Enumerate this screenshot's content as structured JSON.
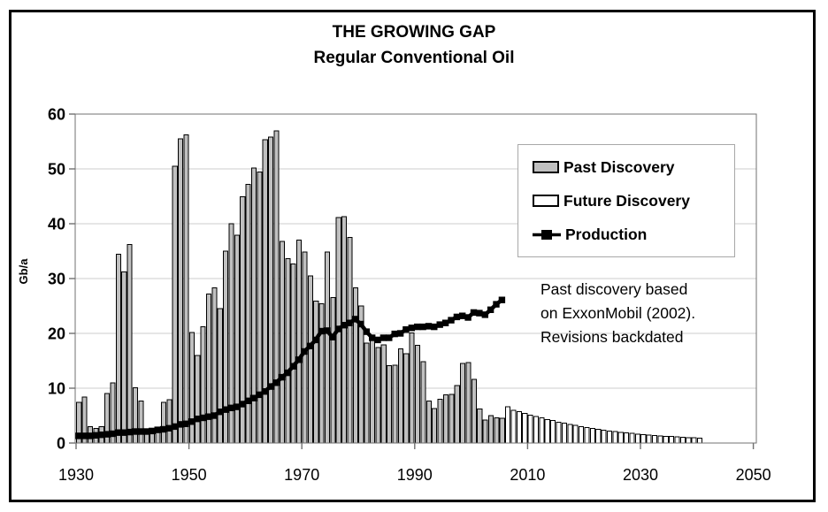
{
  "title": {
    "line1": "THE GROWING GAP",
    "line2": "Regular Conventional Oil"
  },
  "y_axis": {
    "label": "Gb/a",
    "ticks": [
      0,
      10,
      20,
      30,
      40,
      50,
      60
    ]
  },
  "x_axis": {
    "ticks": [
      1930,
      1950,
      1970,
      1990,
      2010,
      2030,
      2050
    ]
  },
  "legend": {
    "past": "Past Discovery",
    "future": "Future Discovery",
    "production": "Production"
  },
  "annotation": {
    "lines": [
      "Past discovery based",
      "on ExxonMobil (2002).",
      "Revisions backdated"
    ]
  },
  "colors": {
    "past_bar": "#c0c0c0",
    "future_bar": "#ffffff",
    "bar_border": "#000000",
    "production": "#000000",
    "gridline": "#d8d8d8",
    "axis": "#707070",
    "text": "#000000"
  },
  "chart_data": {
    "type": "bar",
    "title": "THE GROWING GAP - Regular Conventional Oil",
    "xlabel": "",
    "ylabel": "Gb/a",
    "ylim": [
      0,
      60
    ],
    "xlim": [
      1930,
      2050
    ],
    "grid": "horizontal",
    "legend_position": "upper-right",
    "series": [
      {
        "name": "Past Discovery",
        "kind": "past",
        "type": "bar",
        "start_year": 1930,
        "values": [
          7.4,
          8.4,
          3.0,
          2.7,
          3.0,
          9.0,
          11.0,
          34.4,
          31.2,
          36.2,
          10.1,
          7.7,
          2.6,
          2.3,
          2.6,
          7.4,
          7.9,
          50.5,
          55.5,
          56.2,
          20.2,
          16.0,
          21.2,
          27.2,
          28.3,
          24.5,
          35.0,
          40.0,
          37.9,
          44.9,
          47.2,
          50.2,
          49.4,
          55.3,
          55.8,
          56.9,
          36.8,
          33.6,
          32.7,
          37.0,
          34.8,
          30.5,
          25.9,
          25.4,
          34.8,
          26.5,
          41.1,
          41.3,
          37.5,
          28.3,
          25.0,
          18.2,
          19.0,
          17.4,
          17.9,
          14.1,
          14.2,
          17.2,
          16.3,
          20.1,
          17.8,
          14.8,
          7.7,
          6.3,
          8.0,
          8.8,
          8.9,
          10.5,
          14.5,
          14.7,
          11.6,
          6.2,
          4.2,
          5.0,
          4.6,
          4.5
        ]
      },
      {
        "name": "Future Discovery",
        "kind": "future",
        "type": "bar",
        "start_year": 2006,
        "values": [
          6.6,
          6.0,
          5.7,
          5.4,
          5.1,
          4.8,
          4.6,
          4.3,
          4.1,
          3.8,
          3.6,
          3.4,
          3.2,
          3.0,
          2.8,
          2.65,
          2.5,
          2.35,
          2.2,
          2.1,
          1.95,
          1.85,
          1.75,
          1.65,
          1.55,
          1.45,
          1.4,
          1.3,
          1.25,
          1.2,
          1.1,
          1.05,
          1.0,
          0.95,
          0.9
        ]
      },
      {
        "name": "Production",
        "kind": "production",
        "type": "line",
        "start_year": 1930,
        "values": [
          1.3,
          1.3,
          1.3,
          1.4,
          1.5,
          1.6,
          1.7,
          1.9,
          1.9,
          2.0,
          2.1,
          2.1,
          2.1,
          2.2,
          2.4,
          2.5,
          2.7,
          3.0,
          3.4,
          3.5,
          3.9,
          4.4,
          4.6,
          4.8,
          5.0,
          5.7,
          6.1,
          6.4,
          6.6,
          7.1,
          7.7,
          8.2,
          8.8,
          9.4,
          10.3,
          11.0,
          12.0,
          12.8,
          14.0,
          15.2,
          16.7,
          17.7,
          18.8,
          20.4,
          20.5,
          19.3,
          20.8,
          21.5,
          21.9,
          22.6,
          21.7,
          20.3,
          19.2,
          18.8,
          19.2,
          19.2,
          19.9,
          20.0,
          20.7,
          21.0,
          21.2,
          21.2,
          21.3,
          21.2,
          21.6,
          21.9,
          22.4,
          23.0,
          23.2,
          22.9,
          23.8,
          23.7,
          23.4,
          24.3,
          25.3,
          26.1
        ]
      }
    ]
  }
}
